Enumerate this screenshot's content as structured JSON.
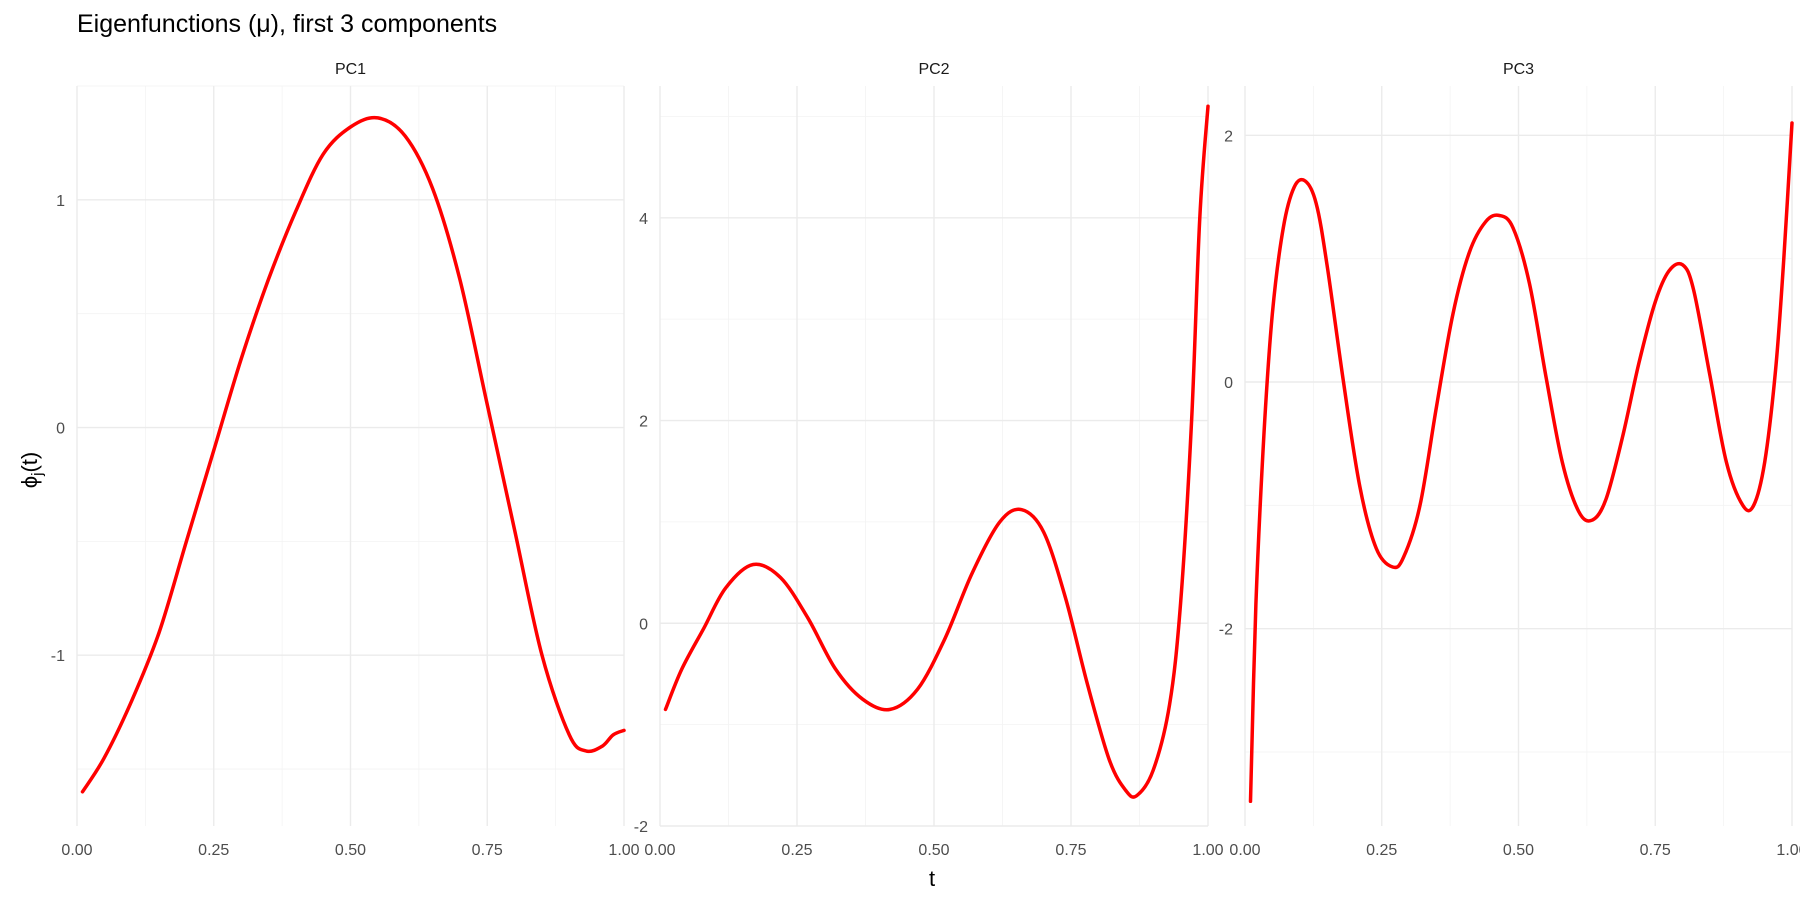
{
  "colors": {
    "series": "#ff0000",
    "grid": "#ebebeb",
    "background": "#ffffff"
  },
  "figure": {
    "title": "Eigenfunctions (μ), first 3 components",
    "xlabel": "t",
    "ylabel": "ϕ",
    "ylabel_subscript": "j",
    "ylabel_suffix": "(t)"
  },
  "chart_data": [
    {
      "type": "line",
      "panel_label": "PC1",
      "xlim": [
        0,
        1
      ],
      "ylim": [
        -1.75,
        1.5
      ],
      "x_ticks": [
        0,
        0.25,
        0.5,
        0.75,
        1
      ],
      "x_tick_labels": [
        "0.00",
        "0.25",
        "0.50",
        "0.75",
        "1.00"
      ],
      "y_ticks": [
        -1,
        0,
        1
      ],
      "y_tick_labels": [
        "-1",
        "0",
        "1"
      ],
      "grid": true,
      "x": [
        0.01,
        0.05,
        0.1,
        0.15,
        0.2,
        0.25,
        0.3,
        0.35,
        0.4,
        0.45,
        0.5,
        0.55,
        0.6,
        0.65,
        0.7,
        0.75,
        0.8,
        0.85,
        0.9,
        0.93,
        0.96,
        0.98,
        1.0
      ],
      "y": [
        -1.6,
        -1.45,
        -1.2,
        -0.9,
        -0.5,
        -0.1,
        0.3,
        0.65,
        0.95,
        1.2,
        1.32,
        1.36,
        1.28,
        1.05,
        0.65,
        0.1,
        -0.45,
        -1.0,
        -1.35,
        -1.42,
        -1.4,
        -1.35,
        -1.33
      ]
    },
    {
      "type": "line",
      "panel_label": "PC2",
      "xlim": [
        0,
        1
      ],
      "ylim": [
        -2,
        5.3
      ],
      "x_ticks": [
        0,
        0.25,
        0.5,
        0.75,
        1
      ],
      "x_tick_labels": [
        "0.00",
        "0.25",
        "0.50",
        "0.75",
        "1.00"
      ],
      "y_ticks": [
        -2,
        0,
        2,
        4
      ],
      "y_tick_labels": [
        "-2",
        "0",
        "2",
        "4"
      ],
      "grid": true,
      "x": [
        0.01,
        0.04,
        0.08,
        0.12,
        0.17,
        0.22,
        0.27,
        0.32,
        0.37,
        0.42,
        0.47,
        0.52,
        0.57,
        0.62,
        0.66,
        0.7,
        0.74,
        0.78,
        0.82,
        0.85,
        0.87,
        0.9,
        0.93,
        0.95,
        0.97,
        0.985,
        1.0
      ],
      "y": [
        -0.85,
        -0.45,
        -0.05,
        0.35,
        0.58,
        0.45,
        0.05,
        -0.45,
        -0.75,
        -0.85,
        -0.65,
        -0.15,
        0.5,
        1.0,
        1.12,
        0.9,
        0.25,
        -0.6,
        -1.35,
        -1.65,
        -1.7,
        -1.45,
        -0.8,
        0.2,
        2.0,
        4.0,
        5.1
      ]
    },
    {
      "type": "line",
      "panel_label": "PC3",
      "xlim": [
        0,
        1
      ],
      "ylim": [
        -3.6,
        2.4
      ],
      "x_ticks": [
        0,
        0.25,
        0.5,
        0.75,
        1
      ],
      "x_tick_labels": [
        "0.00",
        "0.25",
        "0.50",
        "0.75",
        "1.00"
      ],
      "y_ticks": [
        -2,
        0,
        2
      ],
      "y_tick_labels": [
        "-2",
        "0",
        "2"
      ],
      "grid": true,
      "x": [
        0.01,
        0.02,
        0.035,
        0.05,
        0.07,
        0.09,
        0.11,
        0.13,
        0.15,
        0.18,
        0.21,
        0.24,
        0.27,
        0.29,
        0.32,
        0.35,
        0.38,
        0.41,
        0.44,
        0.465,
        0.49,
        0.52,
        0.55,
        0.58,
        0.61,
        0.635,
        0.66,
        0.69,
        0.72,
        0.75,
        0.775,
        0.8,
        0.82,
        0.85,
        0.88,
        0.91,
        0.93,
        0.95,
        0.97,
        0.985,
        1.0
      ],
      "y": [
        -3.4,
        -1.8,
        -0.4,
        0.55,
        1.25,
        1.58,
        1.63,
        1.45,
        0.95,
        0.0,
        -0.85,
        -1.35,
        -1.5,
        -1.42,
        -1.0,
        -0.2,
        0.55,
        1.05,
        1.3,
        1.35,
        1.25,
        0.8,
        0.05,
        -0.65,
        -1.05,
        -1.12,
        -0.95,
        -0.45,
        0.15,
        0.65,
        0.9,
        0.95,
        0.75,
        0.05,
        -0.65,
        -1.0,
        -1.0,
        -0.65,
        0.1,
        1.0,
        2.1
      ]
    }
  ]
}
